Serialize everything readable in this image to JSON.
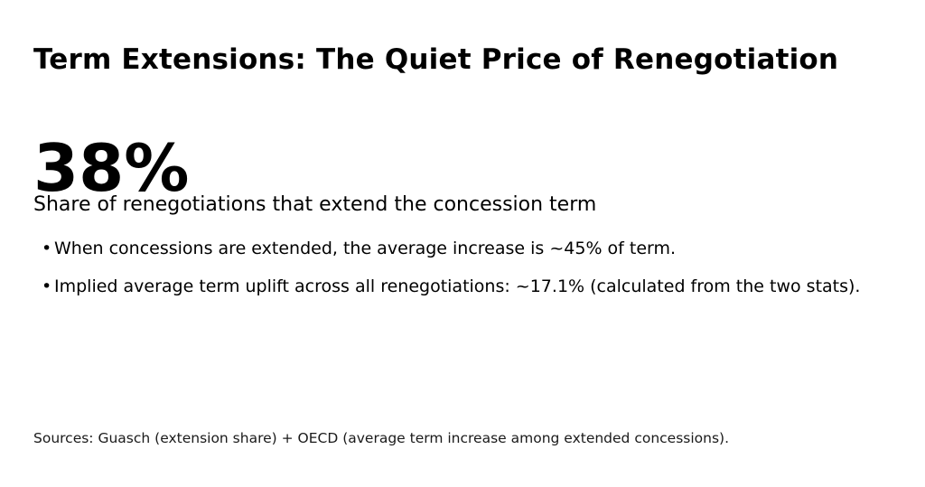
{
  "slide": {
    "title": "Term Extensions: The Quiet Price of Renegotiation",
    "stat": {
      "value": "38%",
      "label": "Share of renegotiations that extend the concession term"
    },
    "bullets": [
      "When concessions are extended, the average increase is ~45% of term.",
      "Implied average term uplift across all renegotiations: ~17.1% (calculated from the two stats)."
    ],
    "source": "Sources: Guasch (extension share) + OECD (average term increase among extended concessions).",
    "colors": {
      "background": "#ffffff",
      "text": "#000000",
      "source_text": "#1a1a1a"
    }
  }
}
